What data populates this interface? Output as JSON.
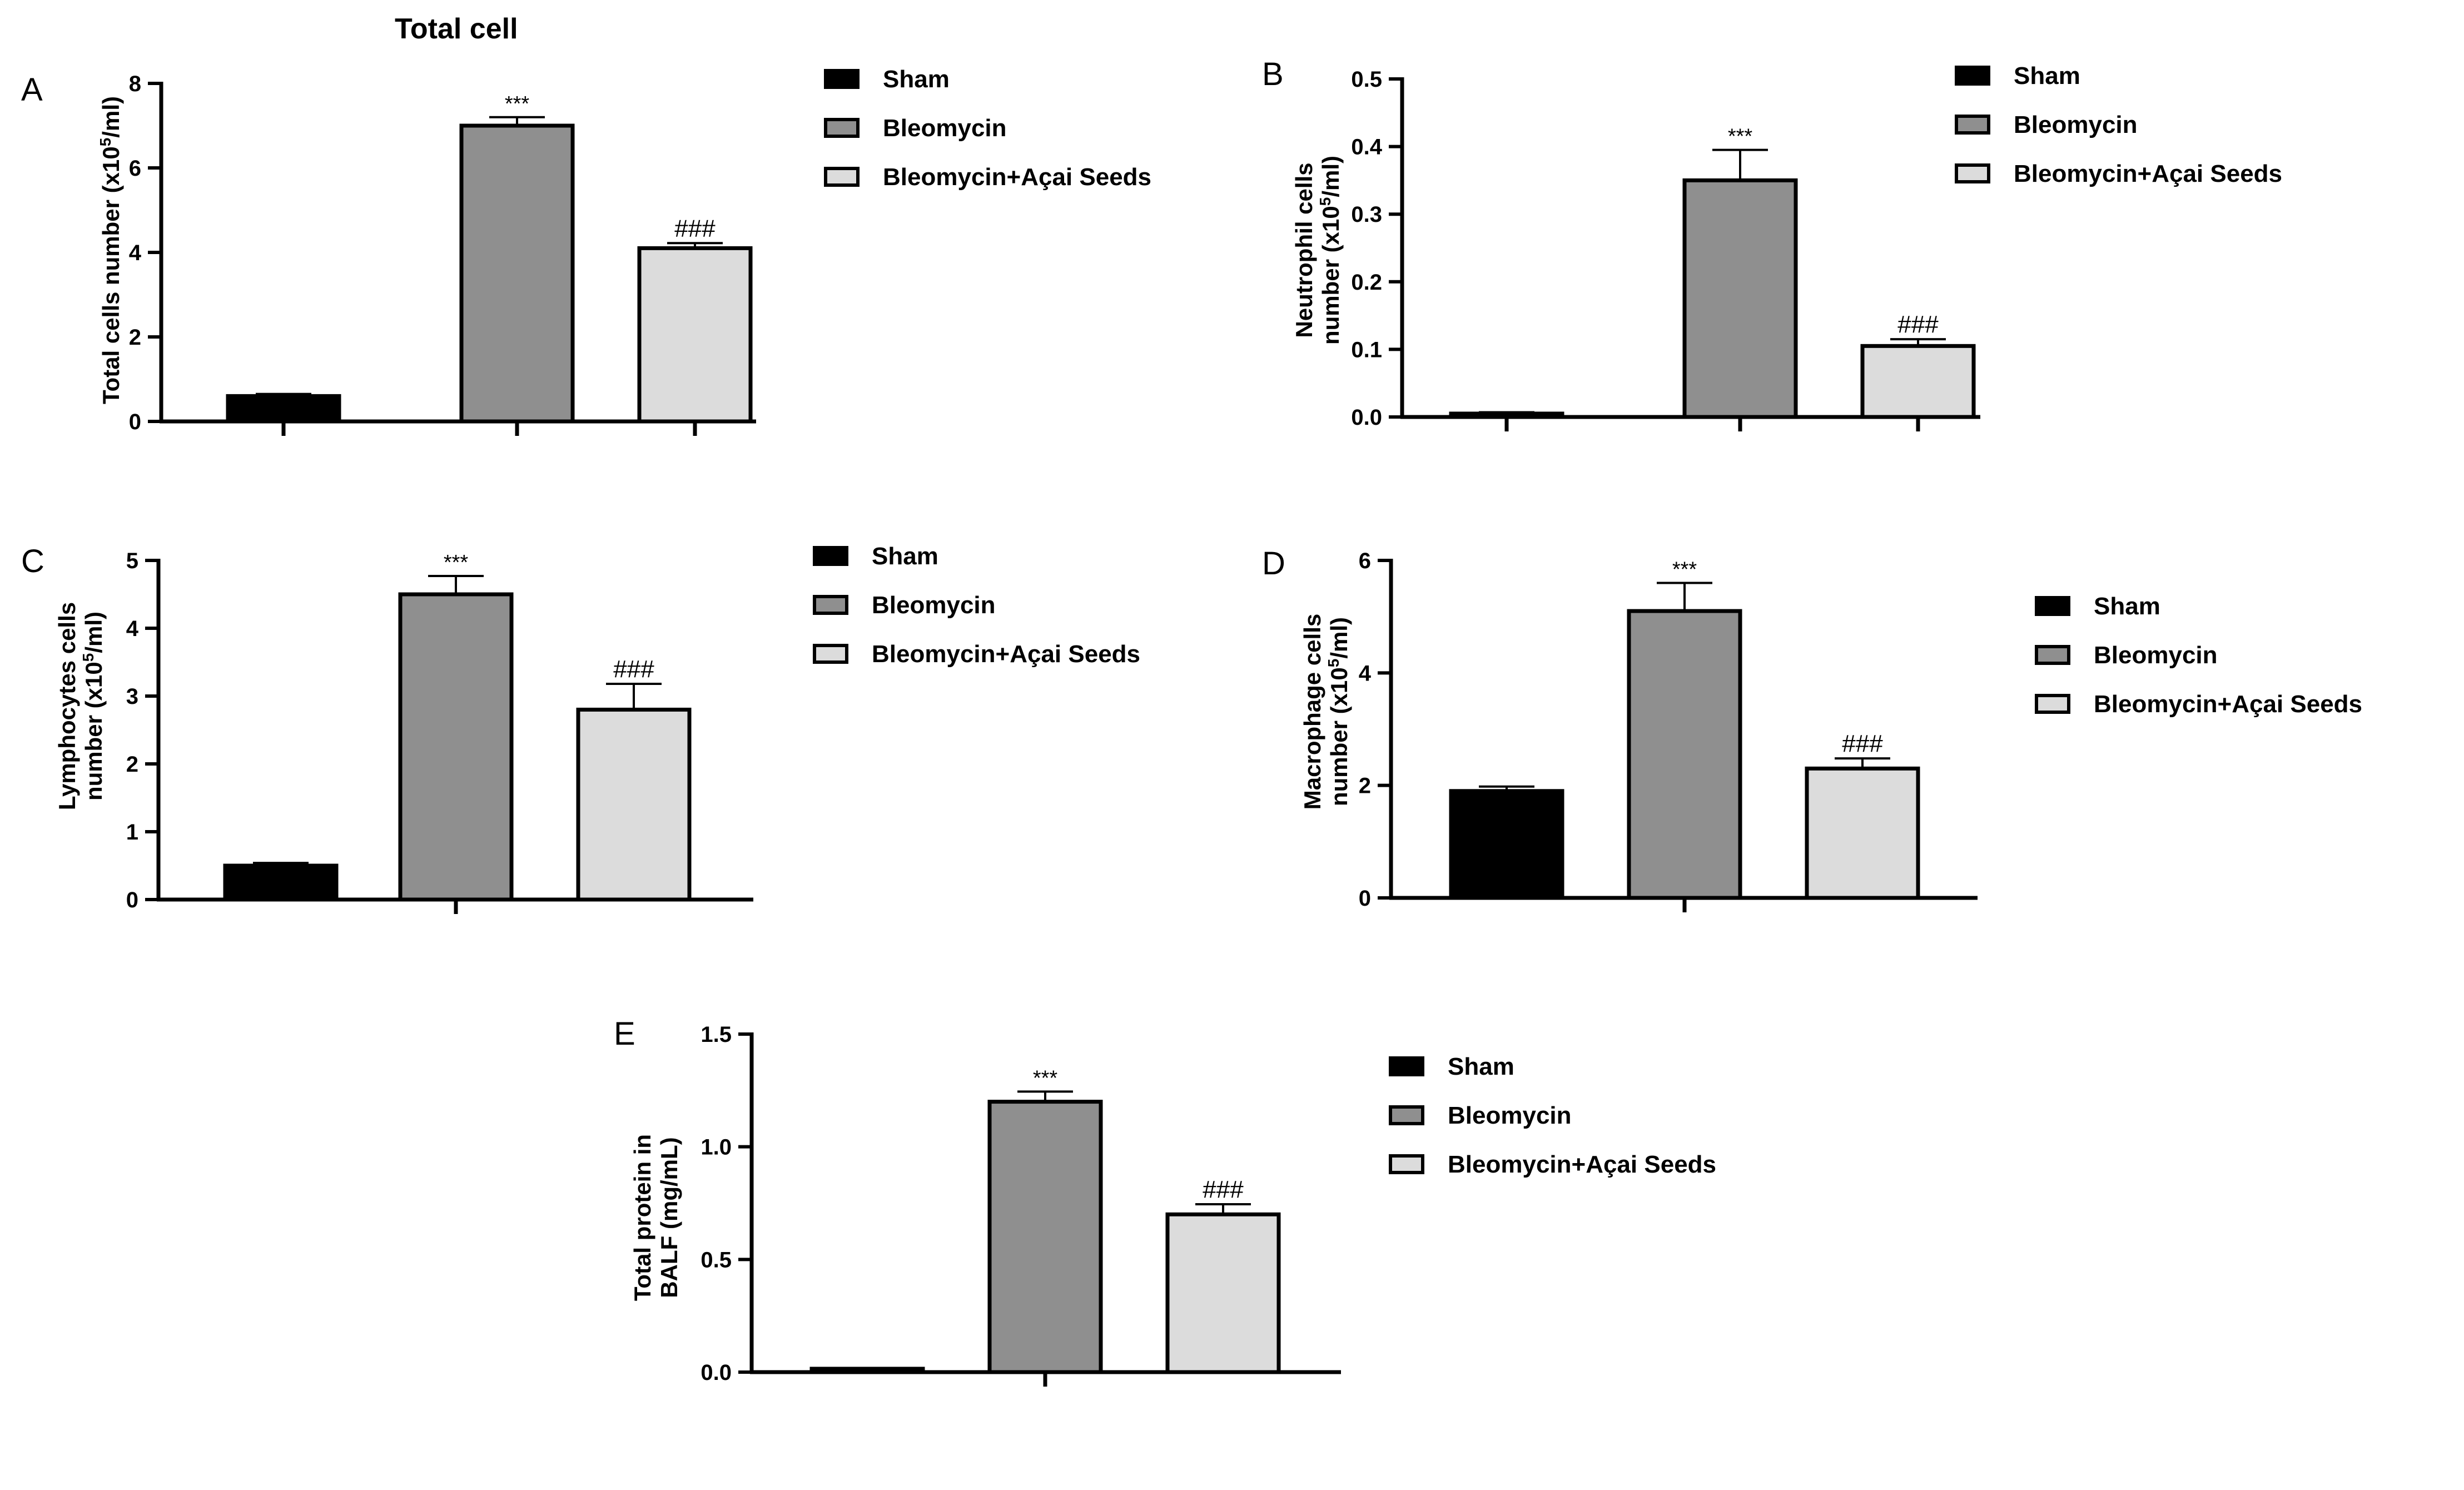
{
  "colors": {
    "sham": "#000000",
    "bleomycin": "#8f8f8f",
    "bleomycin_acai": "#dcdcdc",
    "axis": "#000000"
  },
  "chart_data": [
    {
      "panel": "A",
      "type": "bar",
      "title": "Total cell",
      "ylabel_main": "Total cells number (x10",
      "ylabel_sup": "5",
      "ylabel_end": "/ml)",
      "ylabel2": "",
      "categories": [
        "Sham",
        "Bleomycin",
        "Bleomycin+Açai Seeds"
      ],
      "values": [
        0.6,
        7.0,
        4.1
      ],
      "errors": [
        0.05,
        0.2,
        0.12
      ],
      "annotations": [
        "",
        "***",
        "###"
      ],
      "ylim": [
        0,
        8
      ],
      "yticks": [
        "0",
        "2",
        "4",
        "6",
        "8"
      ],
      "ytick_values": [
        0,
        2,
        4,
        6,
        8
      ],
      "legend": [
        "Sham",
        "Bleomycin",
        "Bleomycin+Açai Seeds"
      ]
    },
    {
      "panel": "B",
      "type": "bar",
      "title": "",
      "ylabel_main": "Neutrophil cells",
      "ylabel_sup": "5",
      "ylabel2_main": "number (x10",
      "ylabel2_end": "/ml)",
      "categories": [
        "Sham",
        "Bleomycin",
        "Bleomycin+Açai Seeds"
      ],
      "values": [
        0.005,
        0.35,
        0.105
      ],
      "errors": [
        0.002,
        0.045,
        0.01
      ],
      "annotations": [
        "",
        "***",
        "###"
      ],
      "ylim": [
        0,
        0.5
      ],
      "yticks": [
        "0.0",
        "0.1",
        "0.2",
        "0.3",
        "0.4",
        "0.5"
      ],
      "ytick_values": [
        0,
        0.1,
        0.2,
        0.3,
        0.4,
        0.5
      ],
      "legend": [
        "Sham",
        "Bleomycin",
        "Bleomycin+Açai Seeds"
      ]
    },
    {
      "panel": "C",
      "type": "bar",
      "title": "",
      "ylabel_main": "Lymphocytes  cells",
      "ylabel_sup": "5",
      "ylabel2_main": "number (x10",
      "ylabel2_end": "/ml)",
      "categories": [
        "Sham",
        "Bleomycin",
        "Bleomycin+Açai Seeds"
      ],
      "values": [
        0.5,
        4.5,
        2.8
      ],
      "errors": [
        0.04,
        0.27,
        0.38
      ],
      "annotations": [
        "",
        "***",
        "###"
      ],
      "ylim": [
        0,
        5
      ],
      "yticks": [
        "0",
        "1",
        "2",
        "3",
        "4",
        "5"
      ],
      "ytick_values": [
        0,
        1,
        2,
        3,
        4,
        5
      ],
      "legend": [
        "Sham",
        "Bleomycin",
        "Bleomycin+Açai Seeds"
      ]
    },
    {
      "panel": "D",
      "type": "bar",
      "title": "",
      "ylabel_main": "Macrophage   cells",
      "ylabel_sup": "5",
      "ylabel2_main": "number (x10",
      "ylabel2_end": "/ml)",
      "categories": [
        "Sham",
        "Bleomycin",
        "Bleomycin+Açai Seeds"
      ],
      "values": [
        1.9,
        5.1,
        2.3
      ],
      "errors": [
        0.08,
        0.5,
        0.18
      ],
      "annotations": [
        "",
        "***",
        "###"
      ],
      "ylim": [
        0,
        6
      ],
      "yticks": [
        "0",
        "2",
        "4",
        "6"
      ],
      "ytick_values": [
        0,
        2,
        4,
        6
      ],
      "legend": [
        "Sham",
        "Bleomycin",
        "Bleomycin+Açai Seeds"
      ]
    },
    {
      "panel": "E",
      "type": "bar",
      "title": "",
      "ylabel_main": "Total protein in",
      "ylabel_sup": "",
      "ylabel2_main": "BALF (mg/mL)",
      "ylabel2_end": "",
      "categories": [
        "Sham",
        "Bleomycin",
        "Bleomycin+Açai Seeds"
      ],
      "values": [
        0.015,
        1.2,
        0.7
      ],
      "errors": [
        0.003,
        0.045,
        0.045
      ],
      "annotations": [
        "",
        "***",
        "###"
      ],
      "ylim": [
        0,
        1.5
      ],
      "yticks": [
        "0.0",
        "0.5",
        "1.0",
        "1.5"
      ],
      "ytick_values": [
        0,
        0.5,
        1.0,
        1.5
      ],
      "legend": [
        "Sham",
        "Bleomycin",
        "Bleomycin+Açai Seeds"
      ]
    }
  ]
}
